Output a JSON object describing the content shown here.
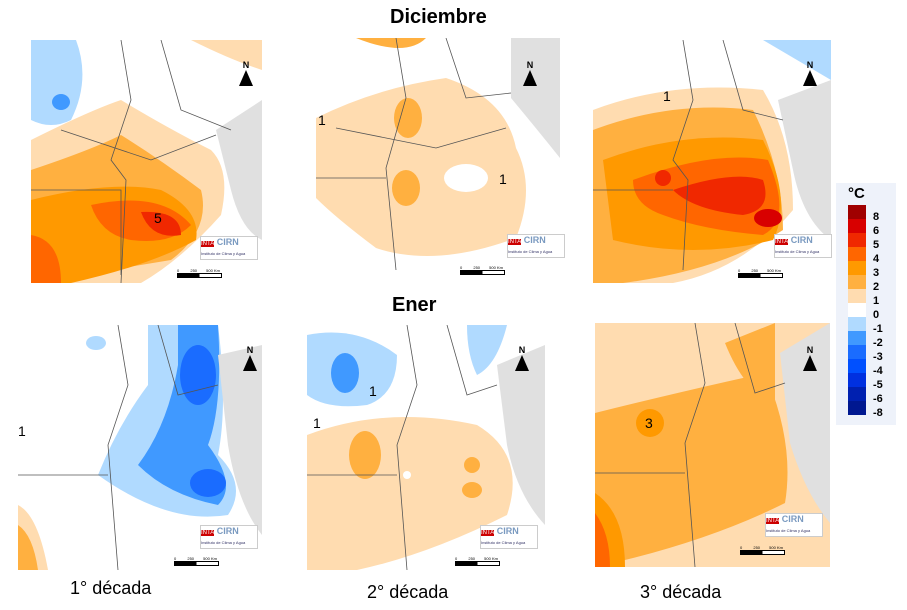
{
  "titles": {
    "month1": "Diciembre",
    "month2": "Ener"
  },
  "captions": [
    "1° década",
    "2° década",
    "3° década"
  ],
  "legend": {
    "unit": "°C",
    "labels": [
      "8",
      "6",
      "5",
      "4",
      "3",
      "2",
      "1",
      "0",
      "-1",
      "-2",
      "-3",
      "-4",
      "-5",
      "-6",
      "-8"
    ],
    "colors": [
      "#a00000",
      "#d80000",
      "#f02800",
      "#ff6600",
      "#ff9900",
      "#ffb040",
      "#ffdcb0",
      "#ffffff",
      "#b0daff",
      "#4099ff",
      "#1a6cff",
      "#0050ff",
      "#0030e0",
      "#0020b0",
      "#001890"
    ]
  },
  "logo": {
    "name": "CIRN",
    "subtitle": "Instituto de Clima y Agua"
  },
  "scale": {
    "ticks": [
      "0",
      "250",
      "500 Km"
    ]
  },
  "north": "N",
  "panels": [
    {
      "month": "Diciembre",
      "decade": "1° década",
      "contour_labels": [
        "5"
      ]
    },
    {
      "month": "Diciembre",
      "decade": "2° década",
      "contour_labels": [
        "1",
        "1"
      ]
    },
    {
      "month": "Diciembre",
      "decade": "3° década",
      "contour_labels": [
        "1"
      ]
    },
    {
      "month": "Ener",
      "decade": "1° década",
      "contour_labels": [
        "1"
      ]
    },
    {
      "month": "Ener",
      "decade": "2° década",
      "contour_labels": [
        "1",
        "1"
      ]
    },
    {
      "month": "Ener",
      "decade": "3° década",
      "contour_labels": [
        "3"
      ]
    }
  ]
}
